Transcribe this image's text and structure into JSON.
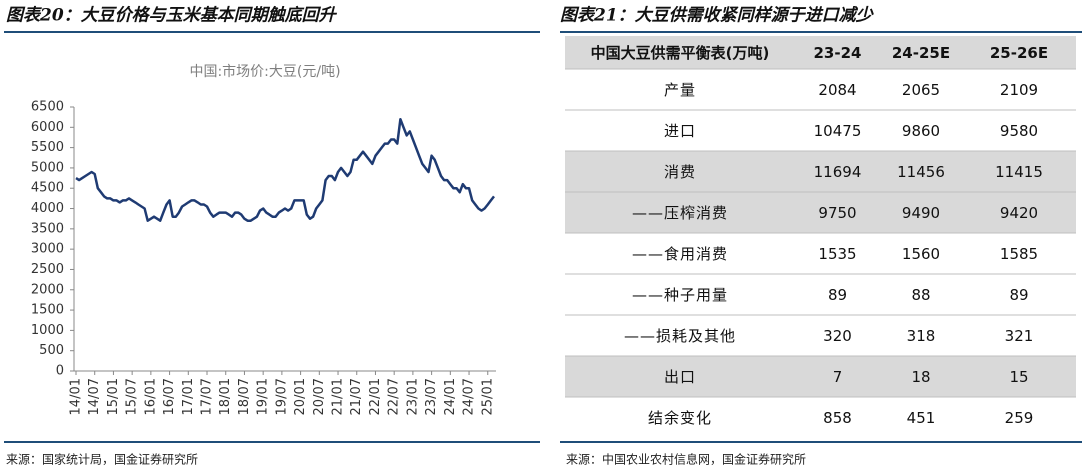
{
  "left_panel": {
    "title": "图表20：大豆价格与玉米基本同期触底回升",
    "source": "来源：国家统计局，国金证券研究所"
  },
  "chart_data": {
    "type": "line",
    "title": "中国:市场价:大豆(元/吨)",
    "color": "#1f3b73",
    "categories": [
      "14/01",
      null,
      null,
      null,
      null,
      null,
      "14/07",
      null,
      null,
      null,
      null,
      null,
      "15/01",
      null,
      null,
      null,
      null,
      null,
      "15/07",
      null,
      null,
      null,
      null,
      null,
      "16/01",
      null,
      null,
      null,
      null,
      null,
      "16/07",
      null,
      null,
      null,
      null,
      null,
      "17/01",
      null,
      null,
      null,
      null,
      null,
      "17/07",
      null,
      null,
      null,
      null,
      null,
      "18/01",
      null,
      null,
      null,
      null,
      null,
      "18/07",
      null,
      null,
      null,
      null,
      null,
      "19/01",
      null,
      null,
      null,
      null,
      null,
      "19/07",
      null,
      null,
      null,
      null,
      null,
      "20/01",
      null,
      null,
      null,
      null,
      null,
      "20/07",
      null,
      null,
      null,
      null,
      null,
      "21/01",
      null,
      null,
      null,
      null,
      null,
      "21/07",
      null,
      null,
      null,
      null,
      null,
      "22/01",
      null,
      null,
      null,
      null,
      null,
      "22/07",
      null,
      null,
      null,
      null,
      null,
      "23/01",
      null,
      null,
      null,
      null,
      null,
      "23/07",
      null,
      null,
      null,
      null,
      null,
      "24/01",
      null,
      null,
      null,
      null,
      null,
      "24/07",
      null,
      null,
      null,
      null,
      null,
      "25/01",
      null,
      null
    ],
    "values": [
      4750,
      4700,
      4750,
      4800,
      4850,
      4900,
      4850,
      4500,
      4400,
      4300,
      4250,
      4250,
      4200,
      4200,
      4150,
      4200,
      4200,
      4250,
      4200,
      4150,
      4100,
      4050,
      4000,
      3700,
      3750,
      3800,
      3750,
      3700,
      3900,
      4100,
      4200,
      3800,
      3800,
      3900,
      4050,
      4100,
      4150,
      4200,
      4200,
      4150,
      4100,
      4100,
      4050,
      3900,
      3800,
      3850,
      3900,
      3900,
      3900,
      3850,
      3800,
      3900,
      3900,
      3850,
      3750,
      3700,
      3700,
      3750,
      3800,
      3950,
      4000,
      3900,
      3850,
      3800,
      3800,
      3900,
      3950,
      4000,
      3950,
      4000,
      4200,
      4200,
      4200,
      4200,
      3850,
      3750,
      3800,
      4000,
      4100,
      4200,
      4700,
      4800,
      4800,
      4700,
      4900,
      5000,
      4900,
      4800,
      4900,
      5200,
      5200,
      5300,
      5400,
      5300,
      5200,
      5100,
      5300,
      5400,
      5500,
      5600,
      5600,
      5700,
      5700,
      5600,
      6200,
      6000,
      5800,
      5900,
      5700,
      5500,
      5300,
      5100,
      5000,
      4900,
      5300,
      5200,
      5000,
      4800,
      4700,
      4700,
      4600,
      4500,
      4500,
      4400,
      4600,
      4500,
      4500,
      4200,
      4100,
      4000,
      3950,
      4000,
      4100,
      4200,
      4300
    ],
    "ylim": [
      0,
      6500
    ],
    "yticks": [
      0,
      500,
      1000,
      1500,
      2000,
      2500,
      3000,
      3500,
      4000,
      4500,
      5000,
      5500,
      6000,
      6500
    ]
  },
  "right_panel": {
    "title": "图表21：大豆供需收紧同样源于进口减少",
    "source": "来源：中国农业农村信息网，国金证券研究所",
    "table": {
      "header": [
        "中国大豆供需平衡表(万吨)",
        "23-24",
        "24-25E",
        "25-26E"
      ],
      "rows": [
        [
          "产量",
          2084,
          2065,
          2109
        ],
        [
          "进口",
          10475,
          9860,
          9580
        ],
        [
          "消费",
          11694,
          11456,
          11415
        ],
        [
          "——压榨消费",
          9750,
          9490,
          9420
        ],
        [
          "——食用消费",
          1535,
          1560,
          1585
        ],
        [
          "——种子用量",
          89,
          88,
          89
        ],
        [
          "——损耗及其他",
          320,
          318,
          321
        ],
        [
          "出口",
          7,
          18,
          15
        ],
        [
          "结余变化",
          858,
          451,
          259
        ]
      ]
    }
  }
}
